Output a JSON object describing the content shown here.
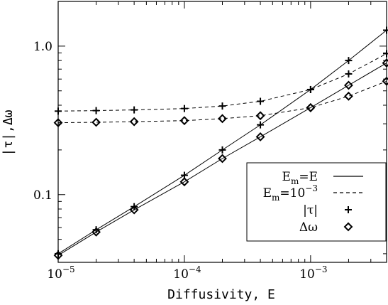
{
  "chart_data": {
    "type": "line",
    "xlabel": "Diffusivity, E",
    "ylabel": "|τ|,Δω",
    "xscale": "log",
    "yscale": "log",
    "xlim": [
      1e-05,
      0.004
    ],
    "ylim": [
      0.035,
      2.0
    ],
    "x_ticks": [
      {
        "value": 1e-05,
        "base": "10",
        "exp": "−5"
      },
      {
        "value": 0.0001,
        "base": "10",
        "exp": "−4"
      },
      {
        "value": 0.001,
        "base": "10",
        "exp": "−3"
      }
    ],
    "y_ticks": [
      {
        "value": 0.1,
        "label": "0.1"
      },
      {
        "value": 1.0,
        "label": "1.0"
      }
    ],
    "x": [
      1e-05,
      2e-05,
      4e-05,
      0.0001,
      0.0002,
      0.0004,
      0.001,
      0.002,
      0.004
    ],
    "series": [
      {
        "group": "Em=E",
        "quantity": "|τ|",
        "line": "solid",
        "marker": "plus",
        "values": [
          0.04,
          0.058,
          0.083,
          0.135,
          0.2,
          0.295,
          0.51,
          0.8,
          1.28
        ]
      },
      {
        "group": "Em=E",
        "quantity": "Δω",
        "line": "solid",
        "marker": "diamond",
        "values": [
          0.039,
          0.056,
          0.079,
          0.122,
          0.175,
          0.245,
          0.385,
          0.545,
          0.77
        ]
      },
      {
        "group": "Em=1e-3",
        "quantity": "|τ|",
        "line": "dashed",
        "marker": "plus",
        "values": [
          0.365,
          0.368,
          0.372,
          0.38,
          0.395,
          0.425,
          0.51,
          0.65,
          0.89
        ]
      },
      {
        "group": "Em=1e-3",
        "quantity": "Δω",
        "line": "dashed",
        "marker": "diamond",
        "values": [
          0.305,
          0.307,
          0.31,
          0.315,
          0.325,
          0.34,
          0.385,
          0.46,
          0.58
        ]
      }
    ],
    "legend": {
      "placement": "lower-right",
      "entries": [
        {
          "base": "E",
          "sub": "m",
          "rest": "=E",
          "sym": "solid"
        },
        {
          "base": "E",
          "sub": "m",
          "rest": "=10",
          "sup": "−3",
          "sym": "dashed"
        },
        {
          "text": "|τ|",
          "sym": "plus"
        },
        {
          "text": "Δω",
          "sym": "diamond"
        }
      ]
    }
  }
}
